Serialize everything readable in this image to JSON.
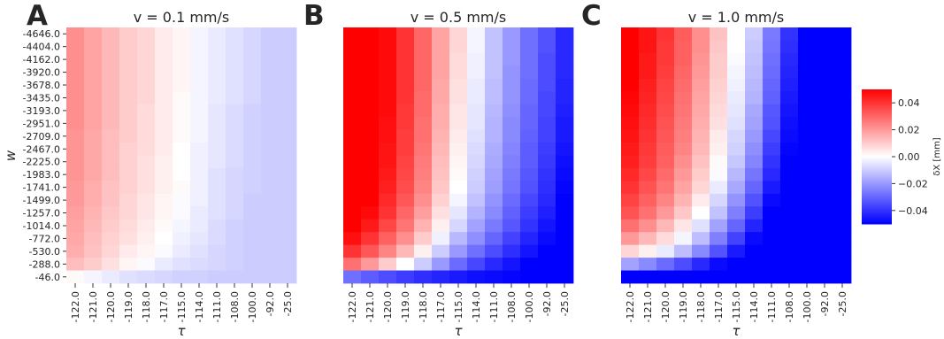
{
  "chart_data": {
    "type": "heatmap",
    "panels": [
      {
        "letter": "A",
        "title": "v = 0.1 mm/s",
        "show_ylabels": true
      },
      {
        "letter": "B",
        "title": "v = 0.5 mm/s",
        "show_ylabels": false
      },
      {
        "letter": "C",
        "title": "v = 1.0 mm/s",
        "show_ylabels": false
      }
    ],
    "xlabel": "τ",
    "ylabel": "w",
    "x_ticks": [
      "-122.0",
      "-121.0",
      "-120.0",
      "-119.0",
      "-118.0",
      "-117.0",
      "-115.0",
      "-114.0",
      "-111.0",
      "-108.0",
      "-100.0",
      "-92.0",
      "-25.0"
    ],
    "y_ticks": [
      "-4646.0",
      "-4404.0",
      "-4162.0",
      "-3920.0",
      "-3678.0",
      "-3435.0",
      "-3193.0",
      "-2951.0",
      "-2709.0",
      "-2467.0",
      "-2225.0",
      "-1983.0",
      "-1741.0",
      "-1499.0",
      "-1257.0",
      "-1014.0",
      "-772.0",
      "-530.0",
      "-288.0",
      "-46.0"
    ],
    "colorbar": {
      "label": "δX [mm]",
      "vmin": -0.05,
      "vmax": 0.05,
      "ticks": [
        "0.04",
        "0.02",
        "0.00",
        "−0.02",
        "−0.04"
      ],
      "tick_values": [
        0.04,
        0.02,
        0.0,
        -0.02,
        -0.04
      ],
      "cmap": "bwr",
      "colors": {
        "low": "#0000ff",
        "mid": "#ffffff",
        "high": "#ff0000"
      }
    },
    "panel_data": [
      {
        "values": [
          [
            0.022,
            0.018,
            0.014,
            0.01,
            0.008,
            0.004,
            0.002,
            -0.002,
            -0.004,
            -0.006,
            -0.008,
            -0.01,
            -0.01
          ],
          [
            0.022,
            0.018,
            0.014,
            0.01,
            0.008,
            0.004,
            0.002,
            -0.002,
            -0.004,
            -0.006,
            -0.008,
            -0.01,
            -0.01
          ],
          [
            0.022,
            0.018,
            0.014,
            0.01,
            0.008,
            0.004,
            0.002,
            -0.002,
            -0.004,
            -0.006,
            -0.008,
            -0.01,
            -0.01
          ],
          [
            0.022,
            0.018,
            0.014,
            0.01,
            0.008,
            0.004,
            0.002,
            -0.002,
            -0.004,
            -0.006,
            -0.008,
            -0.01,
            -0.01
          ],
          [
            0.022,
            0.018,
            0.014,
            0.01,
            0.008,
            0.004,
            0.002,
            -0.002,
            -0.004,
            -0.006,
            -0.008,
            -0.01,
            -0.01
          ],
          [
            0.022,
            0.018,
            0.014,
            0.01,
            0.008,
            0.004,
            0.001,
            -0.002,
            -0.004,
            -0.006,
            -0.008,
            -0.01,
            -0.01
          ],
          [
            0.022,
            0.018,
            0.014,
            0.01,
            0.007,
            0.004,
            0.001,
            -0.002,
            -0.005,
            -0.007,
            -0.009,
            -0.01,
            -0.01
          ],
          [
            0.022,
            0.018,
            0.014,
            0.01,
            0.007,
            0.004,
            0.001,
            -0.002,
            -0.005,
            -0.007,
            -0.009,
            -0.01,
            -0.01
          ],
          [
            0.021,
            0.017,
            0.013,
            0.01,
            0.007,
            0.004,
            0.001,
            -0.002,
            -0.005,
            -0.007,
            -0.009,
            -0.01,
            -0.01
          ],
          [
            0.021,
            0.017,
            0.013,
            0.009,
            0.007,
            0.004,
            0.0,
            -0.003,
            -0.005,
            -0.007,
            -0.009,
            -0.01,
            -0.01
          ],
          [
            0.021,
            0.017,
            0.013,
            0.009,
            0.006,
            0.003,
            0.0,
            -0.003,
            -0.005,
            -0.007,
            -0.009,
            -0.01,
            -0.01
          ],
          [
            0.021,
            0.017,
            0.013,
            0.009,
            0.006,
            0.003,
            0.0,
            -0.003,
            -0.006,
            -0.008,
            -0.009,
            -0.01,
            -0.01
          ],
          [
            0.02,
            0.016,
            0.012,
            0.009,
            0.006,
            0.003,
            0.001,
            -0.003,
            -0.006,
            -0.008,
            -0.009,
            -0.01,
            -0.01
          ],
          [
            0.02,
            0.016,
            0.012,
            0.008,
            0.005,
            0.002,
            -0.001,
            -0.003,
            -0.006,
            -0.008,
            -0.01,
            -0.01,
            -0.01
          ],
          [
            0.019,
            0.015,
            0.011,
            0.008,
            0.005,
            0.002,
            -0.001,
            -0.004,
            -0.006,
            -0.008,
            -0.01,
            -0.01,
            -0.01
          ],
          [
            0.018,
            0.014,
            0.01,
            0.007,
            0.004,
            0.001,
            -0.002,
            -0.004,
            -0.007,
            -0.009,
            -0.01,
            -0.01,
            -0.01
          ],
          [
            0.017,
            0.013,
            0.009,
            0.006,
            0.003,
            0.0,
            -0.003,
            -0.005,
            -0.007,
            -0.009,
            -0.01,
            -0.01,
            -0.01
          ],
          [
            0.016,
            0.012,
            0.008,
            0.004,
            0.002,
            -0.001,
            -0.004,
            -0.006,
            -0.008,
            -0.009,
            -0.01,
            -0.01,
            -0.01
          ],
          [
            0.013,
            0.01,
            0.006,
            0.002,
            -0.001,
            -0.004,
            -0.006,
            -0.007,
            -0.008,
            -0.009,
            -0.01,
            -0.01,
            -0.01
          ],
          [
            0.001,
            -0.002,
            -0.004,
            -0.006,
            -0.007,
            -0.008,
            -0.009,
            -0.009,
            -0.01,
            -0.01,
            -0.01,
            -0.01,
            -0.01
          ]
        ]
      },
      {
        "values": [
          [
            0.06,
            0.055,
            0.048,
            0.04,
            0.03,
            0.018,
            0.008,
            -0.002,
            -0.012,
            -0.02,
            -0.028,
            -0.034,
            -0.042
          ],
          [
            0.06,
            0.055,
            0.048,
            0.04,
            0.03,
            0.018,
            0.008,
            -0.002,
            -0.012,
            -0.02,
            -0.028,
            -0.034,
            -0.042
          ],
          [
            0.06,
            0.055,
            0.048,
            0.04,
            0.03,
            0.018,
            0.007,
            -0.003,
            -0.012,
            -0.02,
            -0.028,
            -0.035,
            -0.042
          ],
          [
            0.06,
            0.055,
            0.048,
            0.04,
            0.03,
            0.018,
            0.007,
            -0.003,
            -0.012,
            -0.021,
            -0.028,
            -0.035,
            -0.042
          ],
          [
            0.06,
            0.055,
            0.048,
            0.04,
            0.03,
            0.017,
            0.006,
            -0.004,
            -0.013,
            -0.021,
            -0.029,
            -0.035,
            -0.043
          ],
          [
            0.06,
            0.055,
            0.048,
            0.04,
            0.029,
            0.017,
            0.006,
            -0.004,
            -0.013,
            -0.021,
            -0.029,
            -0.036,
            -0.043
          ],
          [
            0.06,
            0.055,
            0.048,
            0.039,
            0.029,
            0.016,
            0.005,
            -0.005,
            -0.014,
            -0.022,
            -0.03,
            -0.036,
            -0.044
          ],
          [
            0.06,
            0.054,
            0.047,
            0.039,
            0.028,
            0.016,
            0.005,
            -0.005,
            -0.015,
            -0.023,
            -0.03,
            -0.037,
            -0.045
          ],
          [
            0.06,
            0.054,
            0.047,
            0.038,
            0.028,
            0.015,
            0.004,
            -0.006,
            -0.015,
            -0.023,
            -0.031,
            -0.037,
            -0.045
          ],
          [
            0.06,
            0.054,
            0.046,
            0.038,
            0.027,
            0.014,
            0.003,
            -0.007,
            -0.016,
            -0.024,
            -0.032,
            -0.038,
            -0.046
          ],
          [
            0.06,
            0.053,
            0.046,
            0.037,
            0.026,
            0.013,
            0.002,
            -0.008,
            -0.017,
            -0.025,
            -0.032,
            -0.039,
            -0.047
          ],
          [
            0.06,
            0.053,
            0.045,
            0.036,
            0.025,
            0.012,
            0.001,
            -0.009,
            -0.018,
            -0.026,
            -0.033,
            -0.04,
            -0.048
          ],
          [
            0.06,
            0.052,
            0.044,
            0.035,
            0.024,
            0.011,
            0.0,
            -0.01,
            -0.019,
            -0.027,
            -0.034,
            -0.041,
            -0.049
          ],
          [
            0.058,
            0.05,
            0.042,
            0.033,
            0.022,
            0.009,
            -0.002,
            -0.012,
            -0.021,
            -0.029,
            -0.036,
            -0.042,
            -0.05
          ],
          [
            0.055,
            0.048,
            0.04,
            0.03,
            0.019,
            0.006,
            -0.005,
            -0.015,
            -0.023,
            -0.031,
            -0.038,
            -0.044,
            -0.05
          ],
          [
            0.052,
            0.045,
            0.036,
            0.027,
            0.015,
            0.003,
            -0.008,
            -0.018,
            -0.026,
            -0.033,
            -0.04,
            -0.046,
            -0.05
          ],
          [
            0.047,
            0.04,
            0.031,
            0.022,
            0.01,
            -0.003,
            -0.014,
            -0.022,
            -0.03,
            -0.037,
            -0.043,
            -0.048,
            -0.05
          ],
          [
            0.04,
            0.033,
            0.024,
            0.014,
            0.003,
            -0.01,
            -0.02,
            -0.028,
            -0.035,
            -0.041,
            -0.046,
            -0.05,
            -0.05
          ],
          [
            0.028,
            0.02,
            0.01,
            0.0,
            -0.01,
            -0.02,
            -0.029,
            -0.036,
            -0.042,
            -0.046,
            -0.05,
            -0.05,
            -0.05
          ],
          [
            -0.028,
            -0.032,
            -0.035,
            -0.038,
            -0.041,
            -0.043,
            -0.045,
            -0.047,
            -0.048,
            -0.049,
            -0.05,
            -0.05,
            -0.05
          ]
        ]
      },
      {
        "values": [
          [
            0.052,
            0.046,
            0.04,
            0.032,
            0.022,
            0.012,
            0.0,
            -0.01,
            -0.026,
            -0.04,
            -0.05,
            -0.05,
            -0.05
          ],
          [
            0.052,
            0.046,
            0.039,
            0.031,
            0.022,
            0.011,
            0.0,
            -0.011,
            -0.027,
            -0.041,
            -0.05,
            -0.05,
            -0.05
          ],
          [
            0.051,
            0.045,
            0.039,
            0.031,
            0.021,
            0.01,
            -0.001,
            -0.012,
            -0.028,
            -0.042,
            -0.05,
            -0.05,
            -0.05
          ],
          [
            0.051,
            0.045,
            0.038,
            0.03,
            0.02,
            0.01,
            -0.002,
            -0.013,
            -0.029,
            -0.043,
            -0.05,
            -0.05,
            -0.05
          ],
          [
            0.05,
            0.044,
            0.037,
            0.029,
            0.019,
            0.009,
            -0.003,
            -0.014,
            -0.03,
            -0.044,
            -0.05,
            -0.05,
            -0.05
          ],
          [
            0.049,
            0.043,
            0.036,
            0.028,
            0.018,
            0.008,
            -0.004,
            -0.015,
            -0.031,
            -0.045,
            -0.05,
            -0.05,
            -0.05
          ],
          [
            0.048,
            0.042,
            0.035,
            0.027,
            0.017,
            0.007,
            -0.005,
            -0.017,
            -0.033,
            -0.046,
            -0.05,
            -0.05,
            -0.05
          ],
          [
            0.047,
            0.041,
            0.034,
            0.026,
            0.016,
            0.006,
            -0.006,
            -0.018,
            -0.034,
            -0.047,
            -0.05,
            -0.05,
            -0.05
          ],
          [
            0.046,
            0.04,
            0.033,
            0.025,
            0.015,
            0.004,
            -0.008,
            -0.02,
            -0.036,
            -0.048,
            -0.05,
            -0.05,
            -0.05
          ],
          [
            0.045,
            0.039,
            0.032,
            0.024,
            0.014,
            0.003,
            -0.009,
            -0.022,
            -0.038,
            -0.049,
            -0.05,
            -0.05,
            -0.05
          ],
          [
            0.044,
            0.038,
            0.031,
            0.022,
            0.012,
            0.001,
            -0.011,
            -0.024,
            -0.04,
            -0.05,
            -0.05,
            -0.05,
            -0.05
          ],
          [
            0.042,
            0.036,
            0.029,
            0.02,
            0.01,
            -0.001,
            -0.014,
            -0.027,
            -0.042,
            -0.05,
            -0.05,
            -0.05,
            -0.05
          ],
          [
            0.04,
            0.034,
            0.027,
            0.018,
            0.008,
            -0.004,
            -0.017,
            -0.03,
            -0.045,
            -0.05,
            -0.05,
            -0.05,
            -0.05
          ],
          [
            0.037,
            0.031,
            0.024,
            0.015,
            0.004,
            -0.008,
            -0.021,
            -0.034,
            -0.048,
            -0.05,
            -0.05,
            -0.05,
            -0.05
          ],
          [
            0.034,
            0.028,
            0.02,
            0.011,
            0.0,
            -0.012,
            -0.025,
            -0.038,
            -0.05,
            -0.05,
            -0.05,
            -0.05,
            -0.05
          ],
          [
            0.028,
            0.022,
            0.014,
            0.005,
            -0.006,
            -0.018,
            -0.03,
            -0.043,
            -0.05,
            -0.05,
            -0.05,
            -0.05,
            -0.05
          ],
          [
            0.02,
            0.014,
            0.007,
            -0.002,
            -0.013,
            -0.025,
            -0.037,
            -0.048,
            -0.05,
            -0.05,
            -0.05,
            -0.05,
            -0.05
          ],
          [
            0.008,
            0.003,
            -0.004,
            -0.013,
            -0.023,
            -0.034,
            -0.045,
            -0.05,
            -0.05,
            -0.05,
            -0.05,
            -0.05,
            -0.05
          ],
          [
            -0.018,
            -0.023,
            -0.029,
            -0.035,
            -0.042,
            -0.048,
            -0.05,
            -0.05,
            -0.05,
            -0.05,
            -0.05,
            -0.05,
            -0.05
          ],
          [
            -0.05,
            -0.05,
            -0.05,
            -0.05,
            -0.05,
            -0.05,
            -0.05,
            -0.05,
            -0.05,
            -0.05,
            -0.05,
            -0.05,
            -0.05
          ]
        ]
      }
    ]
  }
}
